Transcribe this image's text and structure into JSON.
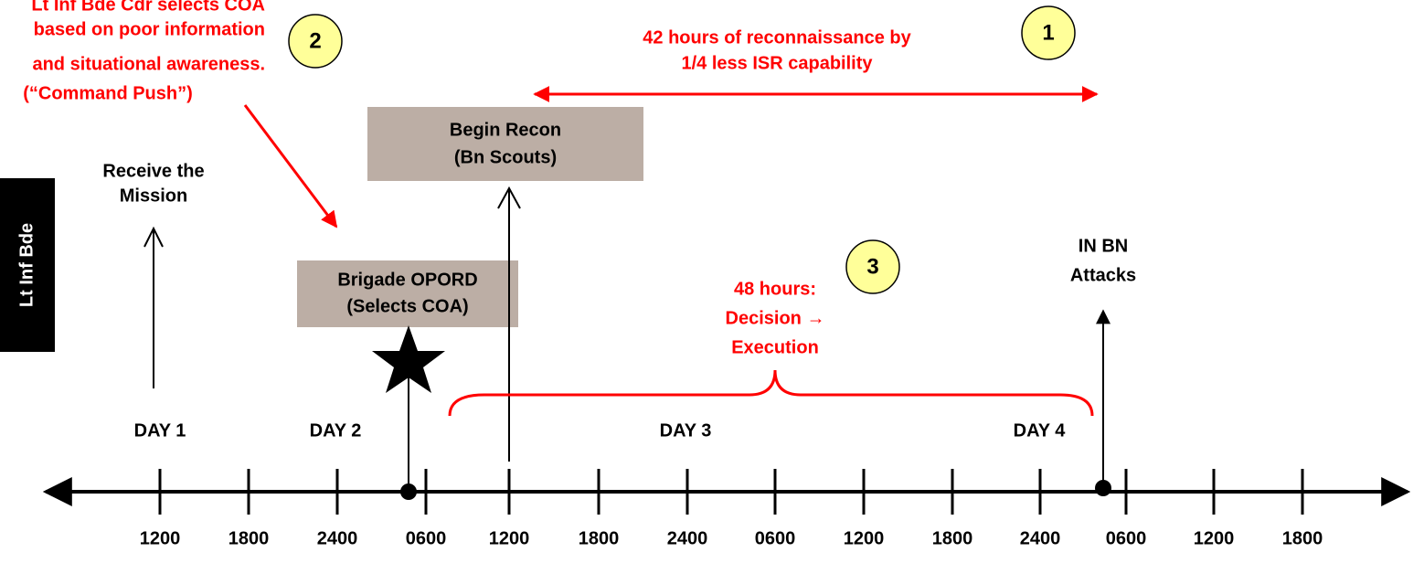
{
  "side_label": "Lt Inf Bde",
  "note": {
    "lines": [
      "Lt Inf Bde Cdr selects COA",
      "based on poor information",
      "and situational awareness.",
      "(“Command Push”)"
    ],
    "badge": "2"
  },
  "recon_note": {
    "lines": [
      "42 hours of reconnaissance by",
      "1/4 less ISR capability"
    ],
    "badge": "1"
  },
  "decision_note": {
    "lines": [
      "48 hours:",
      "Decision →",
      "Execution"
    ],
    "badge": "3"
  },
  "events": {
    "receive": [
      "Receive the",
      "Mission"
    ],
    "opord": [
      "Brigade OPORD",
      "(Selects COA)"
    ],
    "recon": [
      "Begin Recon",
      "(Bn Scouts)"
    ],
    "attack": [
      "IN BN",
      "Attacks"
    ]
  },
  "days": [
    "DAY 1",
    "DAY 2",
    "DAY 3",
    "DAY 4"
  ],
  "times": [
    "1200",
    "1800",
    "2400",
    "0600",
    "1200",
    "1800",
    "2400",
    "0600",
    "1200",
    "1800",
    "2400",
    "0600",
    "1200",
    "1800"
  ]
}
